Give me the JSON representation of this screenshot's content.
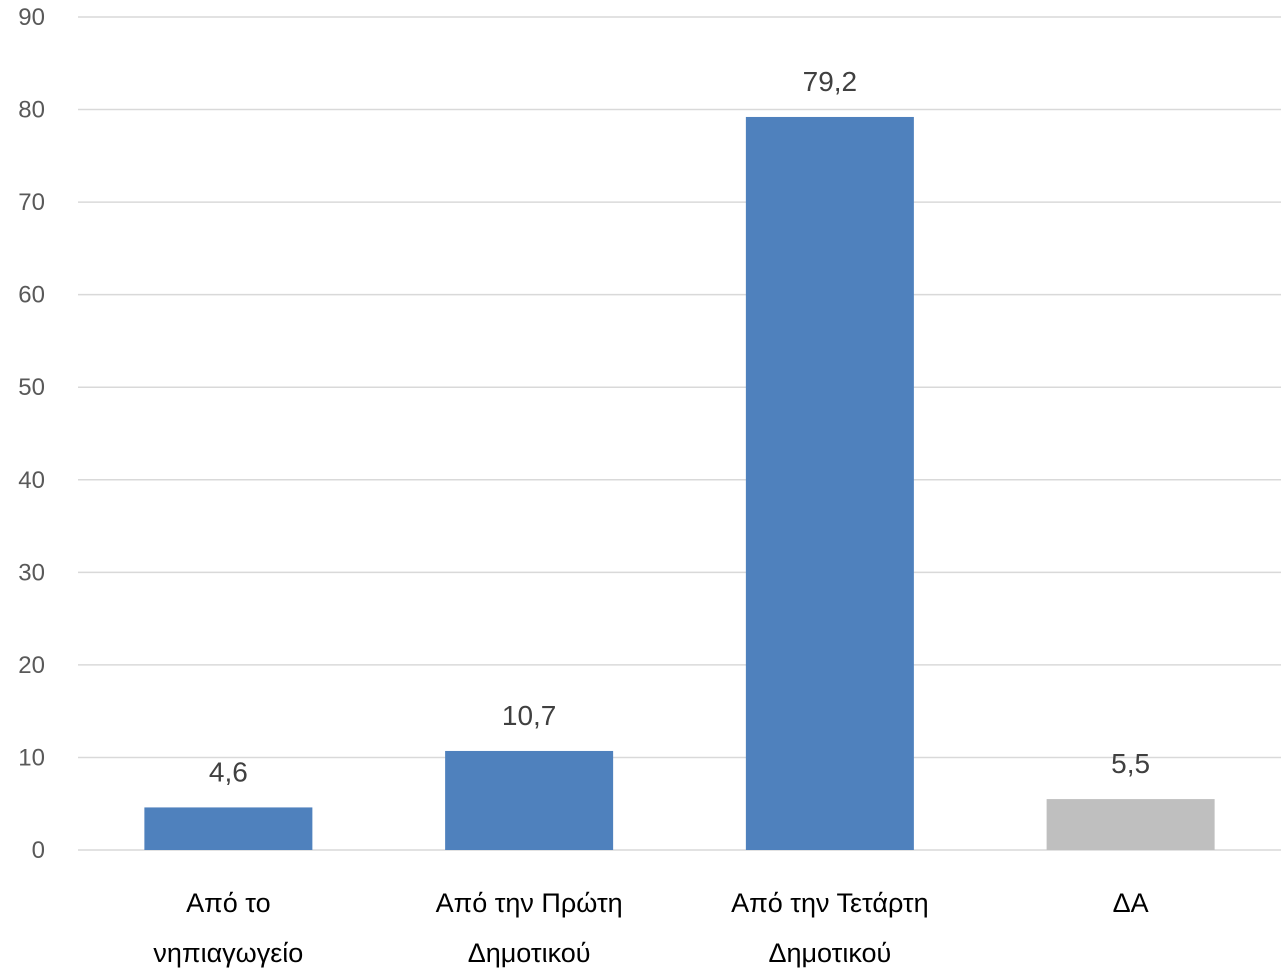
{
  "chart_data": {
    "type": "bar",
    "title": "",
    "xlabel": "",
    "ylabel": "",
    "ylim": [
      0,
      90
    ],
    "yticks": [
      0,
      10,
      20,
      30,
      40,
      50,
      60,
      70,
      80,
      90
    ],
    "grid": true,
    "legend": "none",
    "categories": [
      [
        "Από το",
        "νηπιαγωγείο"
      ],
      [
        "Από την Πρώτη",
        "Δημοτικού"
      ],
      [
        "Από την Τετάρτη",
        "Δημοτικού"
      ],
      [
        "ΔΑ"
      ]
    ],
    "values": [
      4.6,
      10.7,
      79.2,
      5.5
    ],
    "data_labels": [
      "4,6",
      "10,7",
      "79,2",
      "5,5"
    ],
    "colors": [
      "#4f81bd",
      "#4f81bd",
      "#4f81bd",
      "#bfbfbf"
    ]
  }
}
